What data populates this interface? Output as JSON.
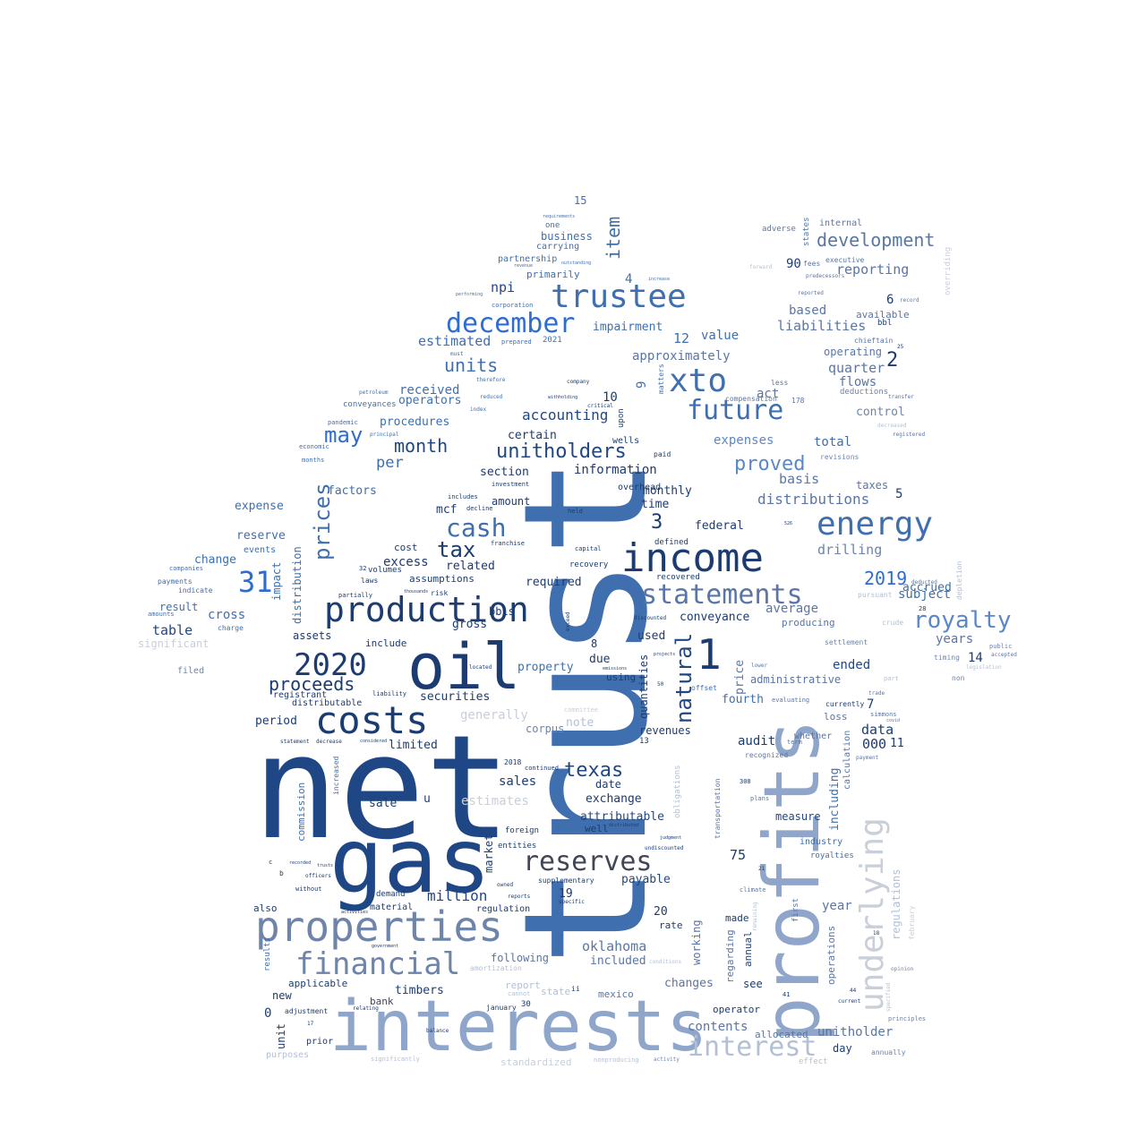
{
  "words": {
    "trust": "trust",
    "net": "net",
    "gas": "gas",
    "oil": "oil",
    "interests": "interests",
    "profits": "profits",
    "properties": "properties",
    "income": "income",
    "production": "production",
    "costs": "costs",
    "energy": "energy",
    "trustee": "trustee",
    "xto": "xto",
    "december": "december",
    "future": "future",
    "statements": "statements",
    "underlying": "underlying",
    "reserves": "reserves",
    "financial": "financial",
    "interest": "interest",
    "n2020": "2020",
    "cash": "cash",
    "royalty": "royalty",
    "unitholders": "unitholders",
    "n31": "31",
    "prices": "prices",
    "n1": "1",
    "development": "development",
    "may": "may",
    "units": "units",
    "proceeds": "proceeds",
    "tax": "tax",
    "texas": "texas",
    "natural": "natural",
    "proved": "proved",
    "month": "month",
    "item": "item",
    "n2019": "2019",
    "distributions": "distributions",
    "million": "million",
    "oklahoma": "oklahoma",
    "n2": "2",
    "n3": "3",
    "accounting": "accounting",
    "npi": "npi",
    "reporting": "reporting",
    "liabilities": "liabilities",
    "approximately": "approximately",
    "estimated": "estimated",
    "received": "received",
    "impairment": "impairment",
    "value": "value",
    "n12": "12",
    "n10": "10",
    "n9": "9",
    "n4": "4",
    "n6": "6",
    "n90": "90",
    "based": "based",
    "quarter": "quarter",
    "flows": "flows",
    "act": "act",
    "basis": "basis",
    "control": "control",
    "operating": "operating",
    "available": "available",
    "total": "total",
    "expenses": "expenses",
    "drilling": "drilling",
    "taxes": "taxes",
    "n5": "5",
    "accrued": "accrued",
    "subject": "subject",
    "years": "years",
    "n14": "14",
    "ended": "ended",
    "price": "price",
    "average": "average",
    "conveyance": "conveyance",
    "producing": "producing",
    "administrative": "administrative",
    "data": "data",
    "n000": "000",
    "n11": "11",
    "n7": "7",
    "fourth": "fourth",
    "audit": "audit",
    "loss": "loss",
    "whether": "whether",
    "including": "including",
    "calculation": "calculation",
    "measure": "measure",
    "industry": "industry",
    "royalties": "royalties",
    "n75": "75",
    "year": "year",
    "operations": "operations",
    "unitholder": "unitholder",
    "day": "day",
    "allocated": "allocated",
    "contents": "contents",
    "operator": "operator",
    "see": "see",
    "annual": "annual",
    "made": "made",
    "regarding": "regarding",
    "working": "working",
    "changes": "changes",
    "rate": "rate",
    "payable": "payable",
    "n20": "20",
    "n19": "19",
    "included": "included",
    "following": "following",
    "report": "report",
    "state": "state",
    "mexico": "mexico",
    "timbers": "timbers",
    "bank": "bank",
    "regulation": "regulation",
    "material": "material",
    "demand": "demand",
    "supplementary": "supplementary",
    "market": "market",
    "foreign": "foreign",
    "entities": "entities",
    "sale": "sale",
    "u": "u",
    "exchange": "exchange",
    "attributable": "attributable",
    "well": "well",
    "date": "date",
    "sales": "sales",
    "corpus": "corpus",
    "note": "note",
    "generally": "generally",
    "securities": "securities",
    "limited": "limited",
    "property": "property",
    "due": "due",
    "n8": "8",
    "used": "used",
    "using": "using",
    "quantities": "quantities",
    "revenues": "revenues",
    "n13": "13",
    "gross": "gross",
    "bbls": "bbls",
    "required": "required",
    "related": "related",
    "assumptions": "assumptions",
    "excess": "excess",
    "cost": "cost",
    "amount": "amount",
    "mcf": "mcf",
    "section": "section",
    "certain": "certain",
    "per": "per",
    "information": "information",
    "monthly": "monthly",
    "time": "time",
    "federal": "federal",
    "recovery": "recovery",
    "defined": "defined",
    "recovered": "recovered",
    "overhead": "overhead",
    "wells": "wells",
    "paid": "paid",
    "upon": "upon",
    "procedures": "procedures",
    "operators": "operators",
    "factors": "factors",
    "reserve": "reserve",
    "expense": "expense",
    "events": "events",
    "change": "change",
    "impact": "impact",
    "distribution": "distribution",
    "cross": "cross",
    "result": "result",
    "table": "table",
    "significant": "significant",
    "filed": "filed",
    "assets": "assets",
    "include": "include",
    "registrant": "registrant",
    "distributable": "distributable",
    "period": "period",
    "commission": "commission",
    "increased": "increased",
    "also": "also",
    "results": "results",
    "applicable": "applicable",
    "new": "new",
    "n0": "0",
    "unit": "unit",
    "prior": "prior",
    "purposes": "purposes",
    "adjustment": "adjustment",
    "standardized": "standardized",
    "estimates": "estimates",
    "primarily": "primarily",
    "business": "business",
    "partnership": "partnership",
    "carrying": "carrying",
    "n15": "15",
    "one": "one",
    "internal": "internal",
    "adverse": "adverse",
    "states": "states",
    "executive": "executive",
    "fees": "fees",
    "overriding": "overriding",
    "deductions": "deductions",
    "chieftain": "chieftain",
    "bbl": "bbl",
    "less": "less",
    "n178": "178",
    "revisions": "revisions",
    "settlement": "settlement",
    "timing": "timing",
    "non": "non",
    "public": "public",
    "depletion": "depletion",
    "crude": "crude",
    "pursuant": "pursuant",
    "currently": "currently",
    "n2021": "2021",
    "conveyances": "conveyances",
    "matters": "matters",
    "recognized": "recognized",
    "transportation": "transportation",
    "obligations": "obligations",
    "n2018": "2018",
    "continued": "continued",
    "regulations": "regulations",
    "february": "february",
    "effect": "effect",
    "annually": "annually",
    "principles": "principles",
    "opinion": "opinion",
    "current": "current",
    "specified": "specified",
    "n30": "30",
    "january": "january",
    "amortization": "amortization",
    "conditions": "conditions",
    "n41": "41",
    "n44": "44",
    "plans": "plans",
    "evaluating": "evaluating",
    "term": "term",
    "simmons": "simmons",
    "payment": "payment",
    "nonproducing": "nonproducing",
    "significantly": "significantly",
    "activity": "activity",
    "n308": "308",
    "n21": "21",
    "first": "first",
    "climate": "climate",
    "remaining": "remaining",
    "compensation": "compensation",
    "committee": "committee",
    "part": "part",
    "legislation": "legislation",
    "accepted": "accepted",
    "n28": "28",
    "record": "record",
    "registered": "registered",
    "deducted": "deducted",
    "n25": "25",
    "n18": "18",
    "reported": "reported",
    "fourthsmall": "offset",
    "costsmall": "cost",
    "charge": "charge",
    "companies": "companies",
    "payments": "payments",
    "indicate": "indicate",
    "amounts": "amounts",
    "n50": "50",
    "lower": "lower",
    "n32": "32",
    "laws": "laws",
    "volumes": "volumes",
    "partially": "partially",
    "risk": "risk",
    "ii": "ii",
    "cannot": "cannot",
    "n17": "17",
    "corporation": "corporation",
    "prepared": "prepared",
    "investment": "investment",
    "liability": "liability",
    "decline": "decline",
    "includes": "includes",
    "economic": "economic",
    "months": "months",
    "pandemic": "pandemic",
    "petroleum": "petroleum",
    "principal": "principal",
    "index": "index",
    "therefore": "therefore",
    "must": "must",
    "reduced": "reduced",
    "performing": "performing",
    "revenue": "revenue",
    "outstanding": "outstanding",
    "requirements": "requirements",
    "company": "company",
    "critical": "critical",
    "withholding": "withholding",
    "forward": "forward",
    "predecessors": "predecessors",
    "increase": "increase",
    "transfer": "transfer",
    "decreased": "decreased",
    "n526": "526",
    "capital": "capital",
    "franchise": "franchise",
    "tenth": "held",
    "ended2": "exceed",
    "statement": "statement",
    "decrease": "decrease",
    "considered": "considered",
    "judgment": "judgment",
    "unaudited": "undiscounted",
    "distributed": "distributed",
    "government": "government",
    "balance": "balance",
    "relating": "relating",
    "specific": "specific",
    "reports": "reports",
    "owned": "owned",
    "without": "without",
    "officers": "officers",
    "recorded": "recorded",
    "c": "c",
    "b": "b",
    "trusts": "trusts",
    "activities": "activities",
    "discounted": "discounted",
    "projects": "projects",
    "emissions": "emissions",
    "located": "located",
    "thousands": "thousands",
    "trade": "trade",
    "covid": "covid",
    "nSeven": "7"
  }
}
